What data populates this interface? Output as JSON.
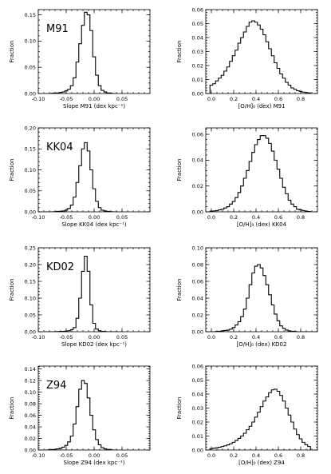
{
  "chart_data": [
    {
      "type": "histogram",
      "row": 0,
      "col": 0,
      "panel_label": "M91",
      "xlabel": "Slope M91 (dex kpc⁻¹)",
      "ylabel": "Fraction",
      "xlim": [
        -0.1,
        0.1
      ],
      "ylim": [
        0,
        0.16
      ],
      "xticks": [
        -0.1,
        -0.05,
        0.0,
        0.05
      ],
      "xtick_labels": [
        "-0.10",
        "-0.05",
        "0.00",
        "0.05"
      ],
      "yticks": [
        0,
        0.05,
        0.1,
        0.15
      ],
      "ytick_labels": [
        "0.00",
        "0.05",
        "0.10",
        "0.15"
      ],
      "bin_width": 0.005,
      "x": [
        -0.085,
        -0.08,
        -0.075,
        -0.07,
        -0.065,
        -0.06,
        -0.055,
        -0.05,
        -0.045,
        -0.04,
        -0.035,
        -0.03,
        -0.025,
        -0.02,
        -0.015,
        -0.01,
        -0.005,
        0.0,
        0.005,
        0.01,
        0.015,
        0.02,
        0.025,
        0.03,
        0.035,
        0.04
      ],
      "y": [
        0.0,
        0.0,
        0.0005,
        0.001,
        0.001,
        0.002,
        0.003,
        0.005,
        0.008,
        0.015,
        0.03,
        0.06,
        0.095,
        0.13,
        0.155,
        0.15,
        0.12,
        0.07,
        0.035,
        0.015,
        0.006,
        0.003,
        0.001,
        0.0005,
        0.0,
        0.0
      ]
    },
    {
      "type": "histogram",
      "row": 0,
      "col": 1,
      "panel_label": "",
      "xlabel": "[O/H]₀ (dex) M91",
      "ylabel": "Fraction",
      "xlim": [
        -0.05,
        0.95
      ],
      "ylim": [
        0,
        0.06
      ],
      "xticks": [
        0.0,
        0.2,
        0.4,
        0.6,
        0.8
      ],
      "xtick_labels": [
        "0.0",
        "0.2",
        "0.4",
        "0.6",
        "0.8"
      ],
      "yticks": [
        0,
        0.01,
        0.02,
        0.03,
        0.04,
        0.05,
        0.06
      ],
      "ytick_labels": [
        "0.00",
        "0.01",
        "0.02",
        "0.03",
        "0.04",
        "0.05",
        "0.06"
      ],
      "bin_width": 0.025,
      "x": [
        0.0,
        0.025,
        0.05,
        0.075,
        0.1,
        0.125,
        0.15,
        0.175,
        0.2,
        0.225,
        0.25,
        0.275,
        0.3,
        0.325,
        0.35,
        0.375,
        0.4,
        0.425,
        0.45,
        0.475,
        0.5,
        0.525,
        0.55,
        0.575,
        0.6,
        0.625,
        0.65,
        0.675,
        0.7,
        0.725,
        0.75,
        0.775,
        0.8,
        0.825,
        0.85,
        0.875
      ],
      "y": [
        0.006,
        0.007,
        0.009,
        0.011,
        0.013,
        0.016,
        0.019,
        0.023,
        0.027,
        0.031,
        0.036,
        0.04,
        0.044,
        0.048,
        0.051,
        0.052,
        0.051,
        0.049,
        0.046,
        0.042,
        0.037,
        0.032,
        0.027,
        0.022,
        0.018,
        0.014,
        0.011,
        0.008,
        0.006,
        0.004,
        0.003,
        0.002,
        0.0015,
        0.001,
        0.0007,
        0.0005
      ]
    },
    {
      "type": "histogram",
      "row": 1,
      "col": 0,
      "panel_label": "KK04",
      "xlabel": "Slope KK04 (dex kpc⁻¹)",
      "ylabel": "Fraction",
      "xlim": [
        -0.1,
        0.1
      ],
      "ylim": [
        0,
        0.2
      ],
      "xticks": [
        -0.1,
        -0.05,
        0.0,
        0.05
      ],
      "xtick_labels": [
        "-0.10",
        "-0.05",
        "0.00",
        "0.05"
      ],
      "yticks": [
        0,
        0.05,
        0.1,
        0.15,
        0.2
      ],
      "ytick_labels": [
        "0.00",
        "0.05",
        "0.10",
        "0.15",
        "0.20"
      ],
      "bin_width": 0.005,
      "x": [
        -0.085,
        -0.08,
        -0.075,
        -0.07,
        -0.065,
        -0.06,
        -0.055,
        -0.05,
        -0.045,
        -0.04,
        -0.035,
        -0.03,
        -0.025,
        -0.02,
        -0.015,
        -0.01,
        -0.005,
        0.0,
        0.005,
        0.01,
        0.015,
        0.02,
        0.025,
        0.03,
        0.035,
        0.04
      ],
      "y": [
        0.0,
        0.0,
        0.0,
        0.0005,
        0.001,
        0.001,
        0.002,
        0.004,
        0.008,
        0.016,
        0.035,
        0.07,
        0.11,
        0.15,
        0.165,
        0.145,
        0.1,
        0.055,
        0.025,
        0.01,
        0.004,
        0.002,
        0.001,
        0.0005,
        0.0,
        0.0
      ]
    },
    {
      "type": "histogram",
      "row": 1,
      "col": 1,
      "panel_label": "",
      "xlabel": "[O/H]₀ (dex) KK04",
      "ylabel": "Fraction",
      "xlim": [
        -0.05,
        0.95
      ],
      "ylim": [
        0,
        0.065
      ],
      "xticks": [
        0.0,
        0.2,
        0.4,
        0.6,
        0.8
      ],
      "xtick_labels": [
        "0.0",
        "0.2",
        "0.4",
        "0.6",
        "0.8"
      ],
      "yticks": [
        0,
        0.02,
        0.04,
        0.06
      ],
      "ytick_labels": [
        "0.00",
        "0.02",
        "0.04",
        "0.06"
      ],
      "bin_width": 0.025,
      "x": [
        0.0,
        0.025,
        0.05,
        0.075,
        0.1,
        0.125,
        0.15,
        0.175,
        0.2,
        0.225,
        0.25,
        0.275,
        0.3,
        0.325,
        0.35,
        0.375,
        0.4,
        0.425,
        0.45,
        0.475,
        0.5,
        0.525,
        0.55,
        0.575,
        0.6,
        0.625,
        0.65,
        0.675,
        0.7,
        0.725,
        0.75,
        0.775,
        0.8,
        0.825,
        0.85,
        0.875
      ],
      "y": [
        0.0005,
        0.0007,
        0.001,
        0.0015,
        0.002,
        0.003,
        0.004,
        0.006,
        0.008,
        0.011,
        0.015,
        0.02,
        0.026,
        0.032,
        0.039,
        0.046,
        0.052,
        0.056,
        0.059,
        0.059,
        0.057,
        0.053,
        0.047,
        0.04,
        0.033,
        0.026,
        0.019,
        0.014,
        0.009,
        0.006,
        0.004,
        0.002,
        0.0015,
        0.001,
        0.0005,
        0.0003
      ]
    },
    {
      "type": "histogram",
      "row": 2,
      "col": 0,
      "panel_label": "KD02",
      "xlabel": "Slope KD02 (dex kpc⁻¹)",
      "ylabel": "Fraction",
      "xlim": [
        -0.1,
        0.1
      ],
      "ylim": [
        0,
        0.25
      ],
      "xticks": [
        -0.1,
        -0.05,
        0.0,
        0.05
      ],
      "xtick_labels": [
        "-0.10",
        "-0.05",
        "0.00",
        "0.05"
      ],
      "yticks": [
        0,
        0.05,
        0.1,
        0.15,
        0.2,
        0.25
      ],
      "ytick_labels": [
        "0.00",
        "0.05",
        "0.10",
        "0.15",
        "0.20",
        "0.25"
      ],
      "bin_width": 0.005,
      "x": [
        -0.085,
        -0.08,
        -0.075,
        -0.07,
        -0.065,
        -0.06,
        -0.055,
        -0.05,
        -0.045,
        -0.04,
        -0.035,
        -0.03,
        -0.025,
        -0.02,
        -0.015,
        -0.01,
        -0.005,
        0.0,
        0.005,
        0.01,
        0.015,
        0.02,
        0.025,
        0.03,
        0.035,
        0.04
      ],
      "y": [
        0.0,
        0.0,
        0.0,
        0.0,
        0.0005,
        0.001,
        0.001,
        0.002,
        0.003,
        0.006,
        0.012,
        0.04,
        0.1,
        0.18,
        0.225,
        0.18,
        0.08,
        0.025,
        0.008,
        0.003,
        0.001,
        0.0005,
        0.0,
        0.0,
        0.0,
        0.0
      ]
    },
    {
      "type": "histogram",
      "row": 2,
      "col": 1,
      "panel_label": "",
      "xlabel": "[O/H]₀ (dex) KD02",
      "ylabel": "Fraction",
      "xlim": [
        -0.05,
        0.95
      ],
      "ylim": [
        0,
        0.1
      ],
      "xticks": [
        0.0,
        0.2,
        0.4,
        0.6,
        0.8
      ],
      "xtick_labels": [
        "0.0",
        "0.2",
        "0.4",
        "0.6",
        "0.8"
      ],
      "yticks": [
        0,
        0.02,
        0.04,
        0.06,
        0.08,
        0.1
      ],
      "ytick_labels": [
        "0.00",
        "0.02",
        "0.04",
        "0.06",
        "0.08",
        "0.10"
      ],
      "bin_width": 0.025,
      "x": [
        0.0,
        0.025,
        0.05,
        0.075,
        0.1,
        0.125,
        0.15,
        0.175,
        0.2,
        0.225,
        0.25,
        0.275,
        0.3,
        0.325,
        0.35,
        0.375,
        0.4,
        0.425,
        0.45,
        0.475,
        0.5,
        0.525,
        0.55,
        0.575,
        0.6,
        0.625,
        0.65,
        0.675,
        0.7,
        0.725,
        0.75,
        0.775,
        0.8,
        0.825,
        0.85,
        0.875
      ],
      "y": [
        0.0,
        0.0,
        0.0003,
        0.0005,
        0.001,
        0.0015,
        0.002,
        0.003,
        0.005,
        0.008,
        0.012,
        0.018,
        0.027,
        0.04,
        0.056,
        0.07,
        0.078,
        0.08,
        0.076,
        0.067,
        0.056,
        0.044,
        0.032,
        0.021,
        0.013,
        0.007,
        0.004,
        0.002,
        0.001,
        0.0005,
        0.0003,
        0.0,
        0.0,
        0.0,
        0.0,
        0.0
      ]
    },
    {
      "type": "histogram",
      "row": 3,
      "col": 0,
      "panel_label": "Z94",
      "xlabel": "Slope Z94 (dex kpc⁻¹)",
      "ylabel": "Fraction",
      "xlim": [
        -0.1,
        0.1
      ],
      "ylim": [
        0,
        0.145
      ],
      "xticks": [
        -0.1,
        -0.05,
        0.0,
        0.05
      ],
      "xtick_labels": [
        "-0.10",
        "-0.05",
        "0.00",
        "0.05"
      ],
      "yticks": [
        0,
        0.02,
        0.04,
        0.06,
        0.08,
        0.1,
        0.12,
        0.14
      ],
      "ytick_labels": [
        "0.00",
        "0.02",
        "0.04",
        "0.06",
        "0.08",
        "0.10",
        "0.12",
        "0.14"
      ],
      "bin_width": 0.005,
      "x": [
        -0.085,
        -0.08,
        -0.075,
        -0.07,
        -0.065,
        -0.06,
        -0.055,
        -0.05,
        -0.045,
        -0.04,
        -0.035,
        -0.03,
        -0.025,
        -0.02,
        -0.015,
        -0.01,
        -0.005,
        0.0,
        0.005,
        0.01,
        0.015,
        0.02,
        0.025,
        0.03,
        0.035,
        0.04
      ],
      "y": [
        0.0,
        0.0005,
        0.001,
        0.001,
        0.002,
        0.003,
        0.005,
        0.008,
        0.014,
        0.024,
        0.045,
        0.075,
        0.105,
        0.12,
        0.115,
        0.09,
        0.06,
        0.035,
        0.018,
        0.009,
        0.004,
        0.002,
        0.001,
        0.0005,
        0.0,
        0.0
      ]
    },
    {
      "type": "histogram",
      "row": 3,
      "col": 1,
      "panel_label": "",
      "xlabel": "[O/H]₀ (dex) Z94",
      "ylabel": "Fraction",
      "xlim": [
        -0.05,
        0.95
      ],
      "ylim": [
        0,
        0.06
      ],
      "xticks": [
        0.0,
        0.2,
        0.4,
        0.6,
        0.8
      ],
      "xtick_labels": [
        "0.0",
        "0.2",
        "0.4",
        "0.6",
        "0.8"
      ],
      "yticks": [
        0,
        0.01,
        0.02,
        0.03,
        0.04,
        0.05,
        0.06
      ],
      "ytick_labels": [
        "0.00",
        "0.01",
        "0.02",
        "0.03",
        "0.04",
        "0.05",
        "0.06"
      ],
      "bin_width": 0.025,
      "x": [
        0.0,
        0.025,
        0.05,
        0.075,
        0.1,
        0.125,
        0.15,
        0.175,
        0.2,
        0.225,
        0.25,
        0.275,
        0.3,
        0.325,
        0.35,
        0.375,
        0.4,
        0.425,
        0.45,
        0.475,
        0.5,
        0.525,
        0.55,
        0.575,
        0.6,
        0.625,
        0.65,
        0.675,
        0.7,
        0.725,
        0.75,
        0.775,
        0.8,
        0.825,
        0.85,
        0.875
      ],
      "y": [
        0.001,
        0.0013,
        0.0016,
        0.002,
        0.0025,
        0.003,
        0.0037,
        0.0045,
        0.0055,
        0.0068,
        0.0083,
        0.01,
        0.012,
        0.0145,
        0.017,
        0.02,
        0.0235,
        0.027,
        0.031,
        0.035,
        0.038,
        0.041,
        0.043,
        0.0435,
        0.042,
        0.039,
        0.035,
        0.03,
        0.025,
        0.02,
        0.015,
        0.011,
        0.008,
        0.0055,
        0.0038,
        0.0025
      ]
    }
  ]
}
